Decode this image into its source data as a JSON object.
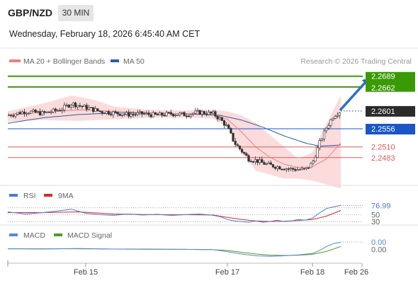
{
  "header": {
    "pair": "GBP/NZD",
    "timeframe": "30 MIN",
    "datetime": "Wednesday, February 18, 2026 6:45:40 AM CET"
  },
  "colors": {
    "green": "#3a9a06",
    "blue_level": "#1a56c4",
    "red": "#e05a5a",
    "bb_fill": "#fad5d5",
    "ma20": "#f08080",
    "ma50": "#2c5fa0",
    "up": "#ffffff",
    "down": "#333333",
    "arrow": "#2e6fc8",
    "rsi": "#4a7bd4",
    "rsi_ma": "#d62a2a",
    "macd": "#5b86d6",
    "macd_signal": "#4f9c1a"
  },
  "chart_data": [
    {
      "type": "candlestick",
      "legend": [
        {
          "label": "MA 20 + Bollinger Bands",
          "color": "#f08080"
        },
        {
          "label": "MA 50",
          "color": "#2c5fa0"
        }
      ],
      "credit": "Research © 2026 Trading Central",
      "ylim": [
        2.242,
        2.271
      ],
      "x_ticks": [
        "Feb 15",
        "Feb 17",
        "Feb 18",
        "Feb 26"
      ],
      "x_tick_at": [
        22,
        62,
        86,
        100
      ],
      "levels": [
        {
          "value": 2.2689,
          "label": "2.2689",
          "kind": "resistance",
          "color": "#3a9a06"
        },
        {
          "value": 2.2662,
          "label": "2.2662",
          "kind": "resistance",
          "color": "#3a9a06"
        },
        {
          "value": 2.2601,
          "label": "2.2601",
          "kind": "last",
          "color": "#333333"
        },
        {
          "value": 2.2556,
          "label": "2.2556",
          "kind": "pivot",
          "color": "#1a56c4"
        },
        {
          "value": 2.251,
          "label": "2.2510",
          "kind": "support",
          "color": "#e05a5a"
        },
        {
          "value": 2.2483,
          "label": "2.2483",
          "kind": "support",
          "color": "#e05a5a"
        }
      ],
      "projection_arrow": {
        "from": [
          94,
          2.2605
        ],
        "to": [
          102,
          2.2684
        ]
      },
      "price_path": [
        [
          0,
          2.259
        ],
        [
          5,
          2.26
        ],
        [
          10,
          2.2595
        ],
        [
          15,
          2.2605
        ],
        [
          18,
          2.262
        ],
        [
          22,
          2.261
        ],
        [
          26,
          2.26
        ],
        [
          30,
          2.2596
        ],
        [
          34,
          2.2592
        ],
        [
          38,
          2.2594
        ],
        [
          42,
          2.259
        ],
        [
          46,
          2.2594
        ],
        [
          50,
          2.2592
        ],
        [
          54,
          2.2598
        ],
        [
          58,
          2.2594
        ],
        [
          60,
          2.258
        ],
        [
          62,
          2.256
        ],
        [
          64,
          2.252
        ],
        [
          66,
          2.25
        ],
        [
          68,
          2.248
        ],
        [
          70,
          2.2476
        ],
        [
          73,
          2.2466
        ],
        [
          76,
          2.246
        ],
        [
          80,
          2.2454
        ],
        [
          84,
          2.2452
        ],
        [
          86,
          2.247
        ],
        [
          88,
          2.252
        ],
        [
          90,
          2.256
        ],
        [
          92,
          2.259
        ],
        [
          94,
          2.2601
        ]
      ],
      "ma20_path": [
        [
          0,
          2.259
        ],
        [
          10,
          2.2598
        ],
        [
          20,
          2.2604
        ],
        [
          30,
          2.26
        ],
        [
          40,
          2.2596
        ],
        [
          50,
          2.2594
        ],
        [
          58,
          2.2594
        ],
        [
          62,
          2.258
        ],
        [
          66,
          2.2548
        ],
        [
          70,
          2.251
        ],
        [
          74,
          2.2484
        ],
        [
          78,
          2.2466
        ],
        [
          82,
          2.2458
        ],
        [
          86,
          2.246
        ],
        [
          90,
          2.248
        ],
        [
          94,
          2.252
        ]
      ],
      "ma50_path": [
        [
          0,
          2.257
        ],
        [
          10,
          2.2584
        ],
        [
          20,
          2.2592
        ],
        [
          30,
          2.2596
        ],
        [
          40,
          2.2596
        ],
        [
          50,
          2.2594
        ],
        [
          60,
          2.259
        ],
        [
          66,
          2.2578
        ],
        [
          72,
          2.256
        ],
        [
          78,
          2.2538
        ],
        [
          84,
          2.252
        ],
        [
          88,
          2.2512
        ],
        [
          94,
          2.2515
        ]
      ],
      "bb_upper_path": [
        [
          0,
          2.26
        ],
        [
          10,
          2.262
        ],
        [
          18,
          2.264
        ],
        [
          24,
          2.263
        ],
        [
          30,
          2.2612
        ],
        [
          40,
          2.2604
        ],
        [
          50,
          2.2602
        ],
        [
          58,
          2.2604
        ],
        [
          62,
          2.26
        ],
        [
          66,
          2.259
        ],
        [
          70,
          2.257
        ],
        [
          74,
          2.254
        ],
        [
          78,
          2.251
        ],
        [
          82,
          2.248
        ],
        [
          86,
          2.2496
        ],
        [
          90,
          2.257
        ],
        [
          94,
          2.264
        ]
      ],
      "bb_lower_path": [
        [
          0,
          2.2575
        ],
        [
          10,
          2.2578
        ],
        [
          20,
          2.2576
        ],
        [
          30,
          2.258
        ],
        [
          40,
          2.2584
        ],
        [
          50,
          2.2584
        ],
        [
          58,
          2.2582
        ],
        [
          62,
          2.256
        ],
        [
          66,
          2.25
        ],
        [
          70,
          2.245
        ],
        [
          74,
          2.244
        ],
        [
          78,
          2.243
        ],
        [
          82,
          2.243
        ],
        [
          86,
          2.2425
        ],
        [
          90,
          2.2415
        ],
        [
          94,
          2.2405
        ]
      ]
    },
    {
      "type": "line",
      "legend": [
        {
          "label": "RSI",
          "color": "#4a7bd4"
        },
        {
          "label": "9MA",
          "color": "#d62a2a"
        }
      ],
      "ylim": [
        20,
        90
      ],
      "y_ticks": [
        {
          "value": 70,
          "label": "70"
        },
        {
          "value": 50,
          "label": "50"
        },
        {
          "value": 30,
          "label": "30"
        }
      ],
      "last_label": "76.99",
      "rsi_path": [
        [
          0,
          58
        ],
        [
          5,
          52
        ],
        [
          10,
          56
        ],
        [
          15,
          62
        ],
        [
          18,
          66
        ],
        [
          22,
          54
        ],
        [
          26,
          50
        ],
        [
          30,
          48
        ],
        [
          34,
          52
        ],
        [
          38,
          49
        ],
        [
          42,
          51
        ],
        [
          46,
          48
        ],
        [
          50,
          50
        ],
        [
          54,
          52
        ],
        [
          58,
          48
        ],
        [
          60,
          44
        ],
        [
          62,
          36
        ],
        [
          64,
          32
        ],
        [
          66,
          30
        ],
        [
          68,
          28
        ],
        [
          70,
          32
        ],
        [
          72,
          28
        ],
        [
          74,
          30
        ],
        [
          76,
          34
        ],
        [
          78,
          30
        ],
        [
          80,
          32
        ],
        [
          82,
          36
        ],
        [
          84,
          34
        ],
        [
          86,
          40
        ],
        [
          88,
          55
        ],
        [
          90,
          68
        ],
        [
          92,
          73
        ],
        [
          94,
          77
        ]
      ],
      "ma_path": [
        [
          0,
          56
        ],
        [
          10,
          56
        ],
        [
          20,
          58
        ],
        [
          30,
          52
        ],
        [
          40,
          50
        ],
        [
          50,
          50
        ],
        [
          58,
          49
        ],
        [
          62,
          42
        ],
        [
          66,
          36
        ],
        [
          70,
          32
        ],
        [
          74,
          30
        ],
        [
          78,
          31
        ],
        [
          82,
          33
        ],
        [
          86,
          36
        ],
        [
          90,
          46
        ],
        [
          94,
          62
        ]
      ]
    },
    {
      "type": "line",
      "legend": [
        {
          "label": "MACD",
          "color": "#5b86d6"
        },
        {
          "label": "MACD Signal",
          "color": "#4f9c1a"
        }
      ],
      "ylim": [
        -0.0045,
        0.0035
      ],
      "y_ticks": [
        {
          "value": 0.0,
          "label": "0.00"
        }
      ],
      "last_label": "0.00",
      "macd_path": [
        [
          0,
          0.0002
        ],
        [
          10,
          0.0001
        ],
        [
          20,
          0.0003
        ],
        [
          30,
          0.0001
        ],
        [
          40,
          0.0
        ],
        [
          50,
          0.0
        ],
        [
          58,
          -0.0001
        ],
        [
          62,
          -0.0008
        ],
        [
          66,
          -0.0016
        ],
        [
          70,
          -0.0022
        ],
        [
          74,
          -0.0024
        ],
        [
          78,
          -0.0022
        ],
        [
          82,
          -0.0019
        ],
        [
          86,
          -0.0014
        ],
        [
          88,
          -0.0004
        ],
        [
          90,
          0.001
        ],
        [
          92,
          0.002
        ],
        [
          94,
          0.0025
        ]
      ],
      "signal_path": [
        [
          0,
          0.0002
        ],
        [
          10,
          0.0002
        ],
        [
          20,
          0.0002
        ],
        [
          30,
          0.0001
        ],
        [
          40,
          0.0001
        ],
        [
          50,
          0.0
        ],
        [
          58,
          -0.0001
        ],
        [
          62,
          -0.0004
        ],
        [
          66,
          -0.001
        ],
        [
          70,
          -0.0016
        ],
        [
          74,
          -0.002
        ],
        [
          78,
          -0.0021
        ],
        [
          82,
          -0.002
        ],
        [
          86,
          -0.0017
        ],
        [
          90,
          -0.0007
        ],
        [
          94,
          0.001
        ]
      ]
    }
  ]
}
